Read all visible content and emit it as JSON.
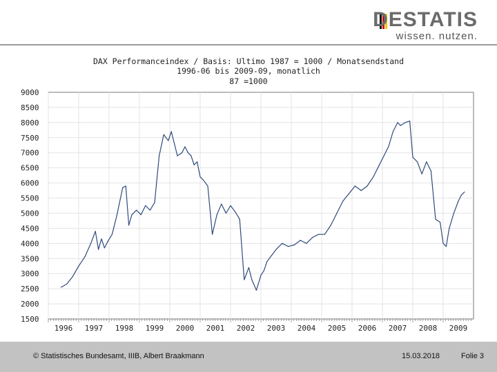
{
  "header": {
    "logo_word": "DESTATIS",
    "logo_tagline": "wissen. nutzen.",
    "logo_bar_colors": [
      "#000000",
      "#d00000",
      "#f5c400"
    ]
  },
  "chart_data": {
    "type": "line",
    "title": "DAX Performanceindex / Basis: Ultimo 1987 = 1000 / Monatsendstand",
    "subtitle": "1996-06 bis 2009-09, monatlich",
    "series_label": "87 =1000",
    "xlabel": "",
    "ylabel": "",
    "ylim": [
      1500,
      9000
    ],
    "yticks": [
      9000,
      8500,
      8000,
      7500,
      7000,
      6500,
      6000,
      5500,
      5000,
      4500,
      4000,
      3500,
      3000,
      2500,
      2000,
      1500
    ],
    "xticks": [
      "1996",
      "1997",
      "1998",
      "1999",
      "2000",
      "2001",
      "2002",
      "2003",
      "2004",
      "2005",
      "2006",
      "2007",
      "2008",
      "2009"
    ],
    "grid": true,
    "line_color": "#2e4a7a",
    "x": [
      1996.42,
      1996.6,
      1996.8,
      1997.0,
      1997.2,
      1997.4,
      1997.55,
      1997.65,
      1997.75,
      1997.85,
      1997.95,
      1998.1,
      1998.25,
      1998.45,
      1998.55,
      1998.65,
      1998.75,
      1998.9,
      1999.05,
      1999.2,
      1999.35,
      1999.5,
      1999.65,
      1999.8,
      1999.95,
      2000.05,
      2000.15,
      2000.25,
      2000.4,
      2000.5,
      2000.6,
      2000.7,
      2000.8,
      2000.9,
      2001.0,
      2001.1,
      2001.25,
      2001.4,
      2001.55,
      2001.7,
      2001.85,
      2002.0,
      2002.15,
      2002.3,
      2002.45,
      2002.6,
      2002.7,
      2002.85,
      2003.0,
      2003.1,
      2003.2,
      2003.35,
      2003.5,
      2003.7,
      2003.9,
      2004.1,
      2004.3,
      2004.5,
      2004.7,
      2004.9,
      2005.1,
      2005.3,
      2005.5,
      2005.7,
      2005.9,
      2006.1,
      2006.3,
      2006.5,
      2006.7,
      2006.9,
      2007.0,
      2007.2,
      2007.35,
      2007.5,
      2007.6,
      2007.75,
      2007.9,
      2008.0,
      2008.15,
      2008.3,
      2008.45,
      2008.6,
      2008.75,
      2008.9,
      2009.0,
      2009.1,
      2009.2,
      2009.35,
      2009.5,
      2009.6,
      2009.7
    ],
    "values": [
      2550,
      2650,
      2900,
      3250,
      3550,
      4000,
      4400,
      3800,
      4150,
      3850,
      4050,
      4300,
      4900,
      5850,
      5900,
      4600,
      4950,
      5100,
      4950,
      5250,
      5100,
      5350,
      6900,
      7600,
      7400,
      7700,
      7300,
      6900,
      7000,
      7200,
      7000,
      6900,
      6600,
      6700,
      6200,
      6100,
      5900,
      4300,
      4950,
      5300,
      5000,
      5250,
      5050,
      4800,
      2800,
      3200,
      2800,
      2450,
      2950,
      3100,
      3400,
      3600,
      3800,
      4000,
      3900,
      3950,
      4100,
      4000,
      4200,
      4300,
      4300,
      4600,
      5000,
      5400,
      5650,
      5900,
      5750,
      5900,
      6200,
      6600,
      6800,
      7200,
      7700,
      8000,
      7900,
      8000,
      8050,
      6850,
      6700,
      6300,
      6700,
      6400,
      4800,
      4700,
      4000,
      3900,
      4500,
      5000,
      5400,
      5600,
      5700
    ]
  },
  "footer": {
    "copyright": "© Statistisches Bundesamt, IIIB, Albert Braakmann",
    "date": "15.03.2018",
    "slide": "Folie 3"
  }
}
